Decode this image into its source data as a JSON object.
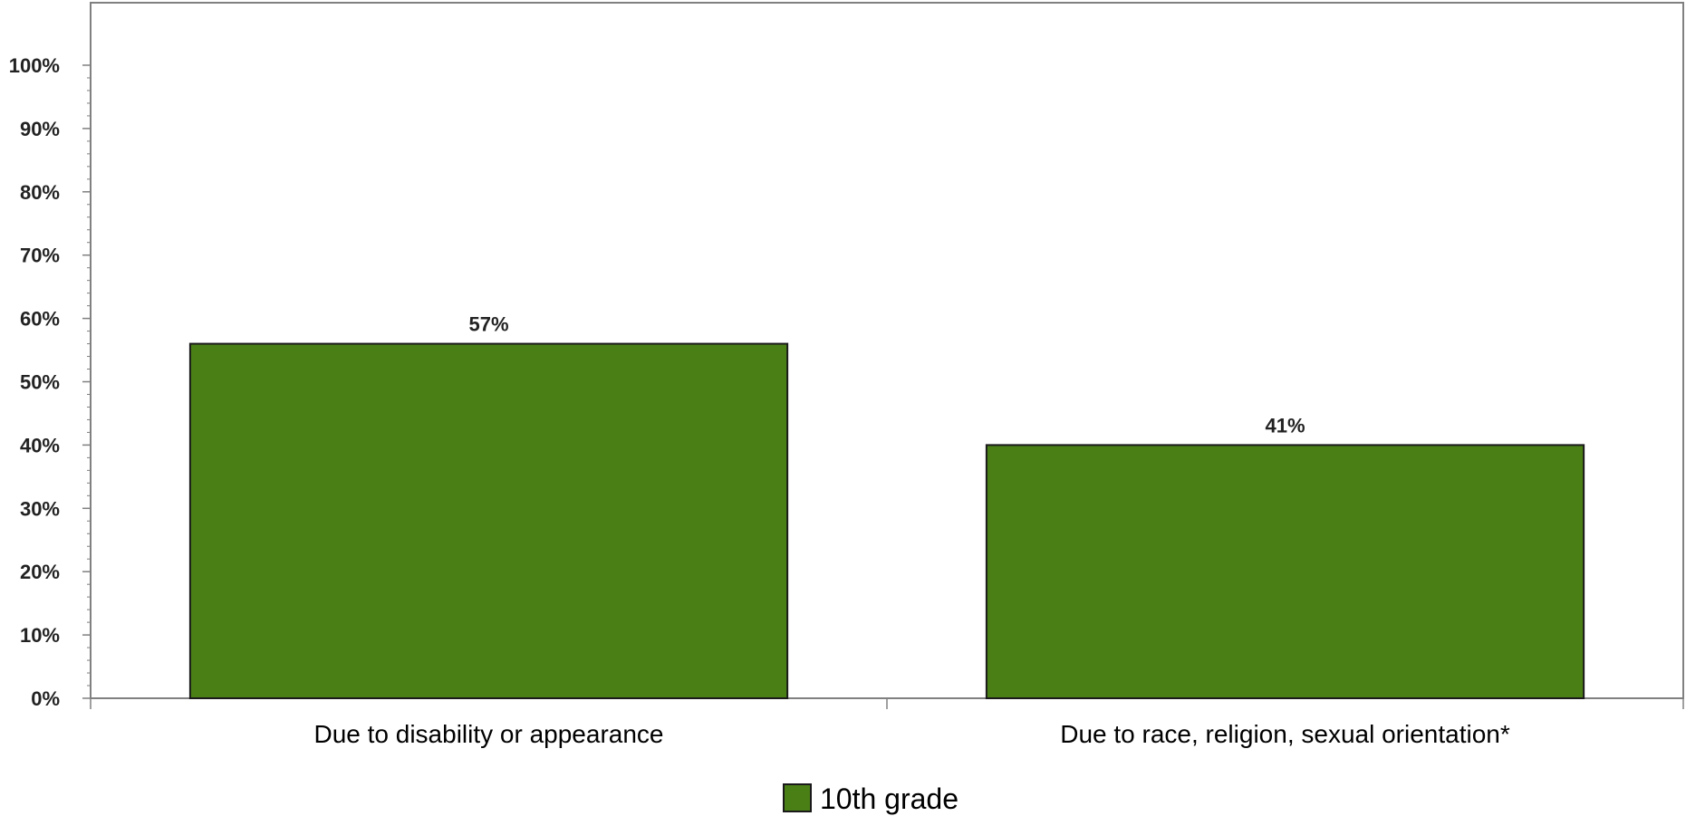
{
  "chart_data": {
    "type": "bar",
    "categories": [
      "Due to disability or appearance",
      "Due to race, religion, sexual orientation*"
    ],
    "series": [
      {
        "name": "10th grade",
        "values": [
          57,
          41
        ],
        "labels": [
          "57%",
          "41%"
        ],
        "color": "#4a7f16"
      }
    ],
    "ylim": [
      0,
      100
    ],
    "yticks": [
      0,
      10,
      20,
      30,
      40,
      50,
      60,
      70,
      80,
      90,
      100
    ],
    "ytick_labels": [
      "0%",
      "10%",
      "20%",
      "30%",
      "40%",
      "50%",
      "60%",
      "70%",
      "80%",
      "90%",
      "100%"
    ],
    "grid": false,
    "legend_position": "bottom-center",
    "colors": {
      "bar": "#4a7f16",
      "bar_stroke": "#1a1a1a",
      "axis": "#808080",
      "frame": "#808080"
    }
  }
}
